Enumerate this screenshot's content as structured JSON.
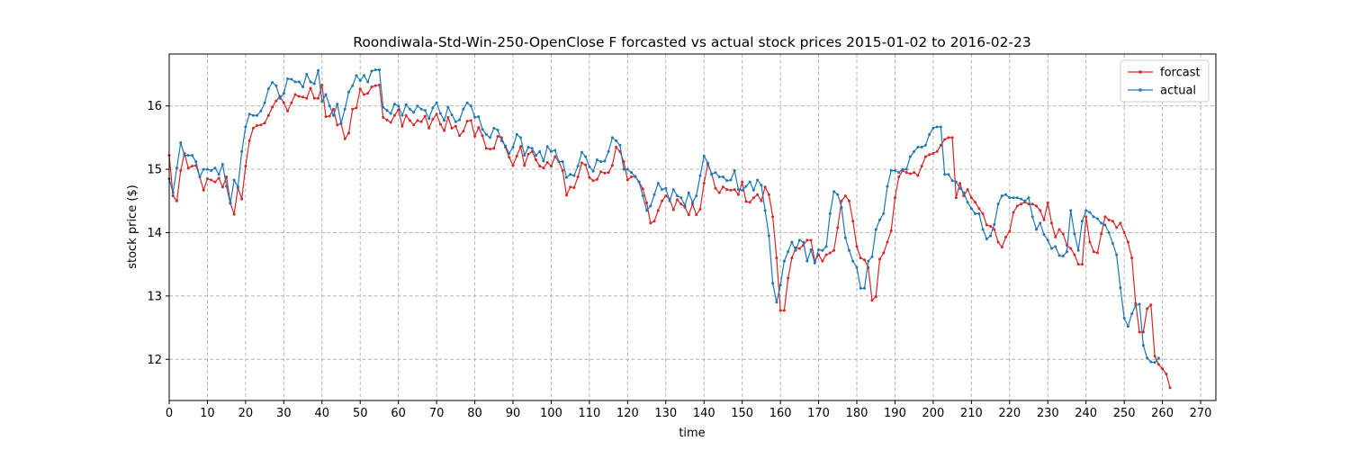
{
  "chart_data": {
    "type": "line",
    "title": "Roondiwala-Std-Win-250-OpenClose F forcasted vs actual stock prices 2015-01-02 to 2016-02-23",
    "xlabel": "time",
    "ylabel": "stock price ($)",
    "xlim": [
      0,
      274
    ],
    "ylim": [
      11.35,
      16.82
    ],
    "xticks": [
      0,
      10,
      20,
      30,
      40,
      50,
      60,
      70,
      80,
      90,
      100,
      110,
      120,
      130,
      140,
      150,
      160,
      170,
      180,
      190,
      200,
      210,
      220,
      230,
      240,
      250,
      260,
      270
    ],
    "yticks": [
      12,
      13,
      14,
      15,
      16
    ],
    "grid": true,
    "legend_position": "upper-right",
    "colors": {
      "forcast": "#d62728",
      "actual": "#1f77b4"
    },
    "series": [
      {
        "name": "forcast",
        "color": "#d62728",
        "values": [
          15.22,
          14.58,
          14.5,
          14.98,
          15.25,
          15.02,
          15.05,
          15.06,
          14.88,
          14.67,
          14.85,
          14.83,
          14.8,
          14.86,
          14.72,
          14.88,
          14.47,
          14.29,
          14.71,
          14.53,
          15.05,
          15.45,
          15.65,
          15.69,
          15.7,
          15.73,
          15.85,
          15.98,
          16.08,
          16.15,
          16.05,
          15.92,
          16.05,
          16.18,
          16.15,
          16.14,
          16.12,
          16.28,
          16.12,
          16.12,
          16.33,
          15.83,
          15.84,
          15.95,
          15.7,
          15.72,
          15.48,
          15.57,
          15.95,
          15.97,
          16.27,
          16.18,
          16.2,
          16.3,
          16.32,
          16.33,
          15.82,
          15.78,
          15.74,
          15.85,
          15.94,
          15.68,
          15.85,
          15.77,
          15.7,
          15.77,
          15.75,
          15.84,
          15.65,
          15.79,
          15.87,
          15.71,
          15.61,
          15.82,
          15.65,
          15.68,
          15.53,
          15.6,
          15.76,
          15.77,
          15.52,
          15.66,
          15.53,
          15.33,
          15.32,
          15.33,
          15.52,
          15.5,
          15.35,
          15.19,
          15.06,
          15.21,
          15.36,
          15.06,
          15.24,
          15.28,
          15.15,
          15.05,
          15.02,
          15.11,
          15.05,
          15.2,
          15.12,
          14.98,
          14.59,
          14.72,
          14.71,
          14.88,
          15.1,
          15.07,
          14.87,
          14.82,
          14.84,
          14.96,
          14.94,
          14.95,
          15.06,
          15.35,
          15.28,
          15.12,
          14.83,
          14.88,
          14.89,
          14.8,
          14.69,
          14.47,
          14.15,
          14.18,
          14.35,
          14.5,
          14.58,
          14.53,
          14.36,
          14.52,
          14.45,
          14.4,
          14.28,
          14.45,
          14.28,
          14.37,
          14.78,
          15.08,
          14.93,
          14.7,
          14.63,
          14.72,
          14.68,
          14.67,
          14.68,
          14.6,
          14.8,
          14.49,
          14.48,
          14.55,
          14.6,
          14.5,
          14.72,
          14.6,
          14.25,
          13.6,
          12.77,
          12.77,
          13.28,
          13.6,
          13.76,
          13.75,
          13.8,
          13.88,
          13.88,
          13.55,
          13.65,
          13.55,
          13.65,
          13.68,
          13.72,
          14.08,
          14.5,
          14.58,
          14.5,
          14.18,
          13.78,
          13.6,
          13.57,
          13.45,
          12.93,
          12.99,
          13.58,
          13.68,
          13.85,
          14.03,
          14.55,
          14.88,
          14.98,
          14.95,
          14.93,
          14.95,
          14.9,
          15.05,
          15.2,
          15.23,
          15.25,
          15.28,
          15.38,
          15.47,
          15.5,
          15.5,
          14.55,
          14.78,
          14.58,
          14.68,
          14.55,
          14.48,
          14.38,
          14.3,
          14.12,
          14.1,
          14.05,
          13.85,
          13.77,
          13.93,
          14.02,
          14.32,
          14.42,
          14.45,
          14.48,
          14.45,
          14.45,
          14.42,
          14.35,
          14.2,
          14.47,
          14.15,
          13.93,
          14.05,
          13.98,
          13.8,
          13.75,
          13.65,
          13.5,
          13.5,
          14.25,
          13.85,
          13.7,
          13.68,
          13.98,
          14.25,
          14.2,
          14.18,
          14.08,
          14.15,
          14.0,
          13.85,
          13.6,
          12.88,
          12.43,
          12.43,
          12.8,
          12.86,
          12.05,
          11.92,
          11.85,
          11.77,
          11.55
        ]
      },
      {
        "name": "actual",
        "color": "#1f77b4",
        "values": [
          14.85,
          14.63,
          15.02,
          15.42,
          15.22,
          15.22,
          15.22,
          15.12,
          14.88,
          15.0,
          15.0,
          14.98,
          15.02,
          14.92,
          15.08,
          14.73,
          14.46,
          14.83,
          14.72,
          15.28,
          15.67,
          15.87,
          15.85,
          15.85,
          15.92,
          16.05,
          16.27,
          16.37,
          16.32,
          16.12,
          16.2,
          16.43,
          16.42,
          16.38,
          16.38,
          16.3,
          16.5,
          16.38,
          16.35,
          16.56,
          16.07,
          16.18,
          16.0,
          15.85,
          16.03,
          15.73,
          15.95,
          16.22,
          16.32,
          16.48,
          16.4,
          16.48,
          16.38,
          16.55,
          16.57,
          16.57,
          15.98,
          15.93,
          15.88,
          16.03,
          16.0,
          15.85,
          16.02,
          15.95,
          15.9,
          16.0,
          15.95,
          15.93,
          15.8,
          15.97,
          16.05,
          15.88,
          15.77,
          15.98,
          15.86,
          15.75,
          15.78,
          15.95,
          16.05,
          16.0,
          15.82,
          15.83,
          15.63,
          15.55,
          15.5,
          15.65,
          15.62,
          15.45,
          15.37,
          15.25,
          15.35,
          15.55,
          15.5,
          15.22,
          15.35,
          15.33,
          15.22,
          15.28,
          15.13,
          15.36,
          15.28,
          15.3,
          15.12,
          15.12,
          14.87,
          14.92,
          14.9,
          15.05,
          15.27,
          15.2,
          15.04,
          14.97,
          15.15,
          15.12,
          15.13,
          15.28,
          15.5,
          15.45,
          15.38,
          15.0,
          15.0,
          14.95,
          14.88,
          14.8,
          14.58,
          14.35,
          14.42,
          14.6,
          14.78,
          14.68,
          14.7,
          14.5,
          14.68,
          14.58,
          14.55,
          14.43,
          14.63,
          14.48,
          14.58,
          14.9,
          15.21,
          15.1,
          14.92,
          14.95,
          14.88,
          14.88,
          14.82,
          14.83,
          14.98,
          14.68,
          14.67,
          14.73,
          14.8,
          14.67,
          14.83,
          14.75,
          14.35,
          13.95,
          13.2,
          12.9,
          13.17,
          13.55,
          13.7,
          13.85,
          13.72,
          13.88,
          13.85,
          13.55,
          13.73,
          13.52,
          13.73,
          13.72,
          13.78,
          14.3,
          14.65,
          14.6,
          14.4,
          13.92,
          13.72,
          13.55,
          13.45,
          13.12,
          13.12,
          13.55,
          13.62,
          14.05,
          14.2,
          14.3,
          14.73,
          14.98,
          14.98,
          14.95,
          15.0,
          15.0,
          15.2,
          15.28,
          15.35,
          15.35,
          15.38,
          15.55,
          15.65,
          15.67,
          15.67,
          14.92,
          14.92,
          14.82,
          14.8,
          14.7,
          14.63,
          14.48,
          14.38,
          14.3,
          14.3,
          14.05,
          13.9,
          13.95,
          14.13,
          14.45,
          14.58,
          14.6,
          14.55,
          14.55,
          14.55,
          14.53,
          14.5,
          14.55,
          14.25,
          14.05,
          14.15,
          13.97,
          13.88,
          13.75,
          13.78,
          13.64,
          13.63,
          13.7,
          14.35,
          13.98,
          13.72,
          14.18,
          14.35,
          14.32,
          14.25,
          14.22,
          14.15,
          14.12,
          14.0,
          13.83,
          13.65,
          13.13,
          12.65,
          12.52,
          12.72,
          12.85,
          12.87,
          12.22,
          12.02,
          11.96,
          11.95,
          12.02
        ]
      }
    ]
  }
}
